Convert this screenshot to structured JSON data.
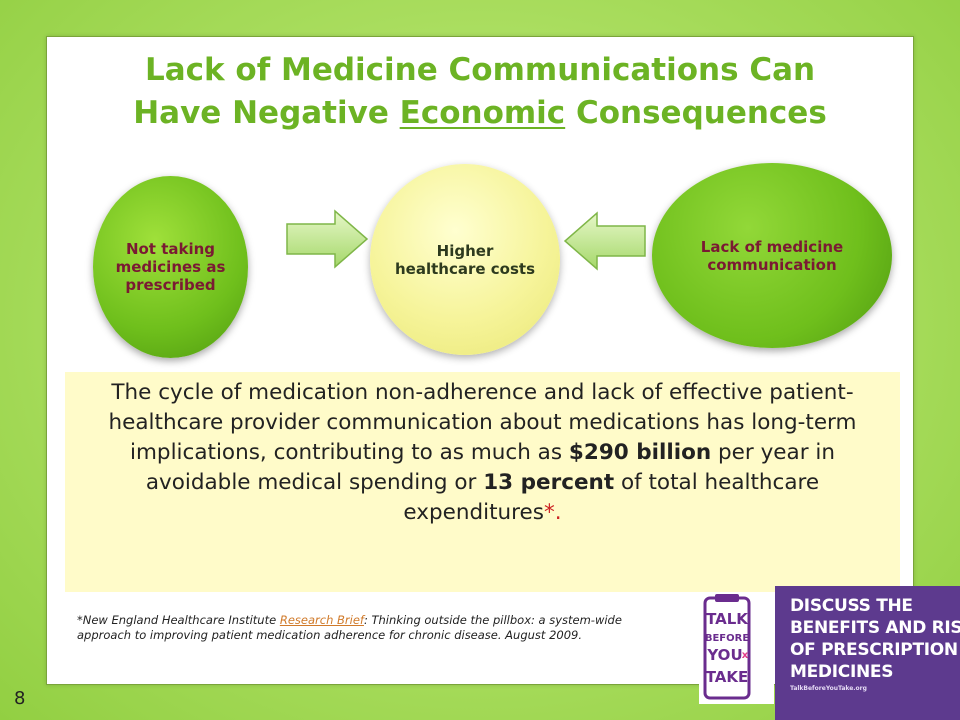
{
  "title": {
    "line1": "Lack of Medicine Communications Can",
    "line2_pre": "Have Negative ",
    "line2_underlined": "Economic",
    "line2_post": " Consequences"
  },
  "diagram": {
    "left_circle": "Not taking medicines as prescribed",
    "center_circle": "Higher healthcare costs",
    "right_circle": "Lack of medicine communication"
  },
  "info": {
    "part1": "The cycle of medication non-adherence and lack of effective patient-healthcare provider communication about medications has long-term implications, contributing to as much as ",
    "bold1": "$290 billion",
    "part2": " per year in avoidable medical spending or ",
    "bold2": "13 percent",
    "part3": " of total healthcare expenditures",
    "asterisk": "*."
  },
  "footnote": {
    "prefix": "*New England Healthcare Institute ",
    "link_text": "Research Brief",
    "suffix": ": Thinking outside the pillbox: a system-wide approach to improving patient medication adherence for chronic disease. August 2009."
  },
  "page_number": "8",
  "logo": {
    "talk": "TALK",
    "before": "BEFORE",
    "you": "YOU",
    "x": "x",
    "take": "TAKE"
  },
  "banner": {
    "line1": "DISCUSS THE",
    "line2": "BENEFITS AND RISKS",
    "line3": "OF PRESCRIPTION",
    "line4": "MEDICINES",
    "url": "TalkBeforeYouTake.org"
  },
  "colors": {
    "title_green": "#6cb324",
    "circle_green": "#6fbf1c",
    "circle_yellow": "#f6f49a",
    "info_background": "#fffbc9",
    "banner_purple": "#5d3a8e",
    "logo_purple": "#6a2c8e"
  }
}
